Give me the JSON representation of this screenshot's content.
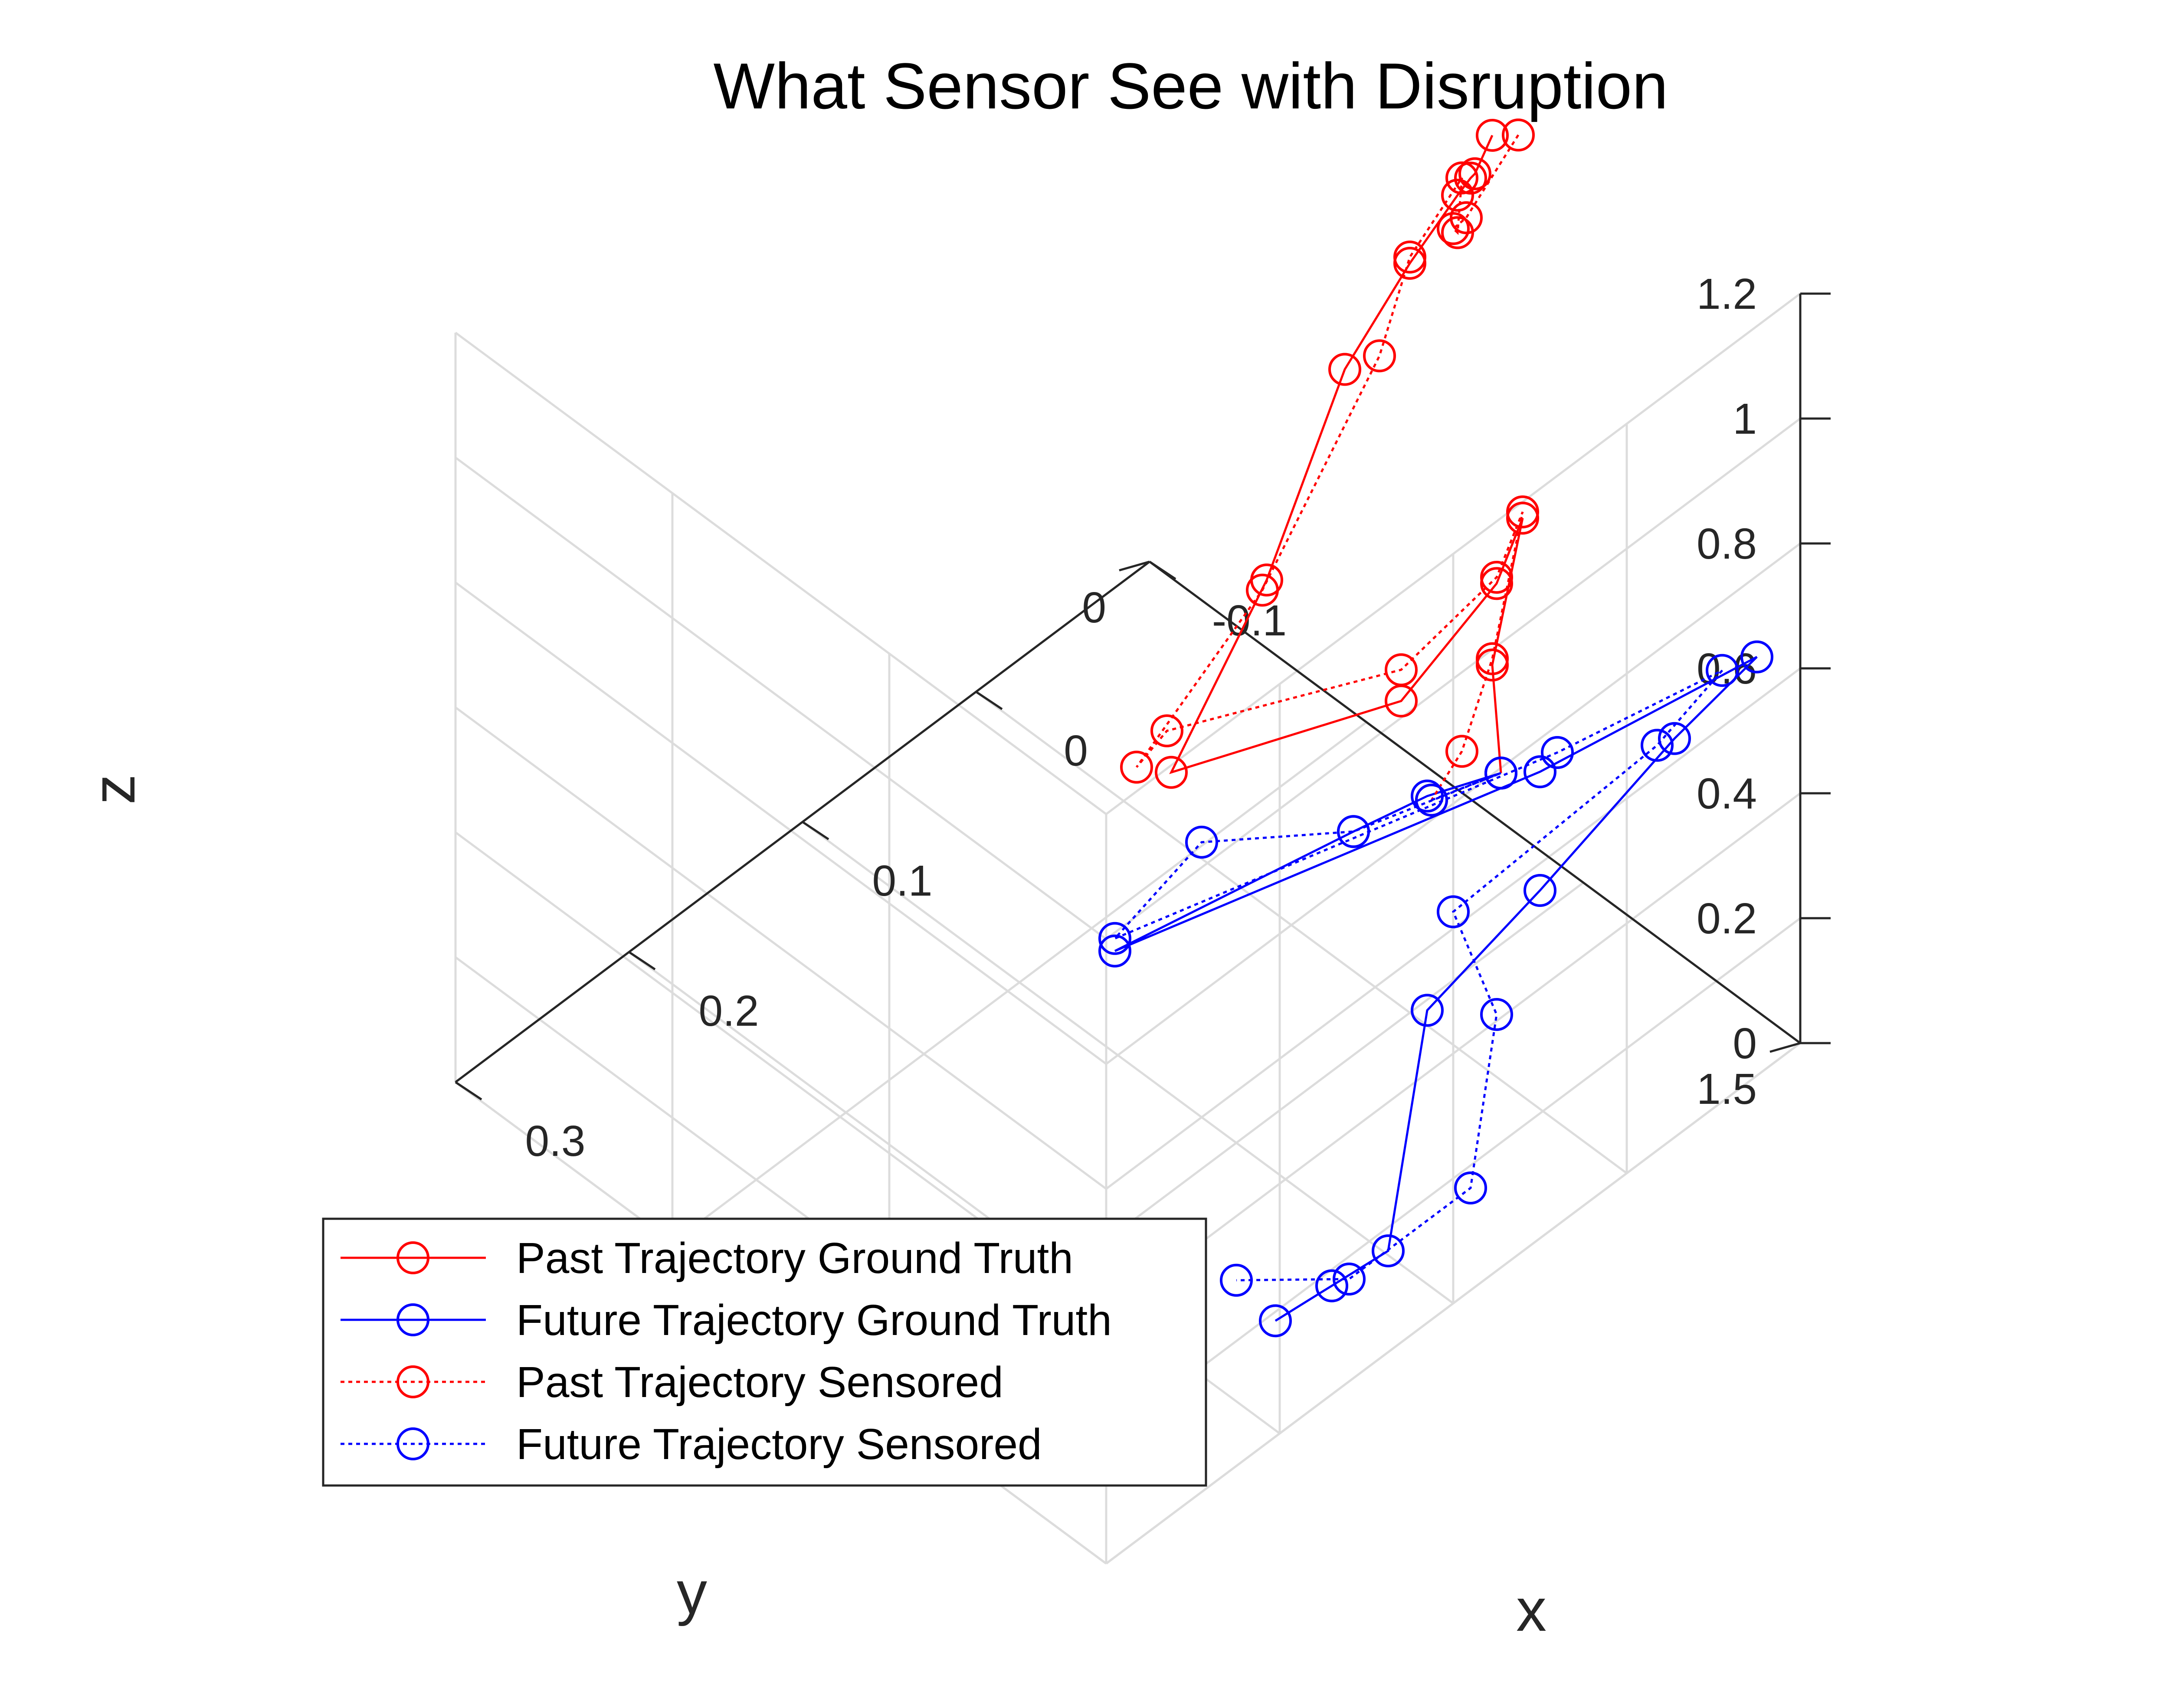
{
  "chart_data": {
    "type": "line",
    "projection": "3d",
    "title": "What Sensor See with Disruption",
    "xlabel": "x",
    "ylabel": "y",
    "zlabel": "z",
    "xticks": [
      "-0.1",
      "0",
      "0.1",
      "0.2",
      "0.3"
    ],
    "yticks": [
      "0",
      "1.5"
    ],
    "zticks": [
      "0",
      "0.2",
      "0.4",
      "0.6",
      "0.8",
      "1",
      "1.2"
    ],
    "grid": true,
    "legend_position": "bottom-left",
    "series": [
      {
        "name": "Past Trajectory Ground Truth",
        "color": "#ff0000",
        "line_style": "solid",
        "marker": "circle",
        "points": [
          [
            -0.09,
            0.83,
            1.13
          ],
          [
            -0.075,
            0.85,
            1.11
          ],
          [
            -0.06,
            0.9,
            1.16
          ],
          [
            -0.04,
            0.95,
            1.2
          ],
          [
            0.0,
            1.0,
            1.2
          ],
          [
            0.05,
            1.05,
            1.16
          ],
          [
            0.12,
            1.15,
            1.02
          ],
          [
            0.2,
            1.25,
            0.93
          ],
          [
            0.08,
            1.3,
            0.82
          ],
          [
            0.0,
            1.2,
            0.79
          ],
          [
            -0.04,
            1.1,
            0.76
          ],
          [
            0.04,
            1.35,
            0.82
          ],
          [
            0.06,
            1.45,
            0.74
          ]
        ]
      },
      {
        "name": "Future Trajectory Ground Truth",
        "color": "#0000ff",
        "line_style": "solid",
        "marker": "circle",
        "points": [
          [
            0.06,
            1.45,
            0.74
          ],
          [
            0.09,
            1.4,
            0.74
          ],
          [
            0.12,
            1.35,
            0.72
          ],
          [
            0.22,
            1.2,
            0.66
          ],
          [
            0.0,
            1.3,
            0.54
          ],
          [
            -0.15,
            1.2,
            0.36
          ],
          [
            -0.09,
            1.25,
            0.38
          ],
          [
            0.0,
            1.3,
            0.35
          ],
          [
            0.04,
            1.2,
            0.19
          ],
          [
            0.05,
            1.15,
            -0.2
          ],
          [
            0.07,
            1.1,
            -0.24
          ],
          [
            0.09,
            1.05,
            -0.28
          ]
        ]
      },
      {
        "name": "Past Trajectory Sensored",
        "color": "#ff0000",
        "line_style": "dotted",
        "marker": "circle",
        "points": [
          [
            -0.1,
            0.85,
            1.12
          ],
          [
            -0.07,
            0.85,
            1.05
          ],
          [
            -0.05,
            0.9,
            1.1
          ],
          [
            -0.04,
            0.95,
            1.14
          ],
          [
            -0.06,
            0.88,
            1.15
          ],
          [
            0.0,
            1.0,
            1.21
          ],
          [
            0.03,
            1.05,
            1.14
          ],
          [
            0.13,
            1.18,
            1.04
          ],
          [
            0.22,
            1.25,
            0.98
          ],
          [
            0.19,
            1.2,
            0.95
          ],
          [
            0.08,
            1.3,
            0.87
          ],
          [
            0.0,
            1.2,
            0.8
          ],
          [
            -0.04,
            1.1,
            0.77
          ],
          [
            0.04,
            1.35,
            0.83
          ],
          [
            0.07,
            1.4,
            0.77
          ],
          [
            0.1,
            1.45,
            0.78
          ]
        ]
      },
      {
        "name": "Future Trajectory Sensored",
        "color": "#0000ff",
        "line_style": "dotted",
        "marker": "circle",
        "points": [
          [
            0.1,
            1.45,
            0.78
          ],
          [
            0.06,
            1.45,
            0.74
          ],
          [
            0.12,
            1.35,
            0.72
          ],
          [
            0.17,
            1.2,
            0.73
          ],
          [
            0.22,
            1.2,
            0.68
          ],
          [
            -0.01,
            1.3,
            0.55
          ],
          [
            -0.13,
            1.2,
            0.38
          ],
          [
            -0.08,
            1.25,
            0.39
          ],
          [
            0.05,
            1.3,
            0.42
          ],
          [
            0.0,
            1.2,
            0.1
          ],
          [
            -0.01,
            1.1,
            -0.25
          ],
          [
            0.06,
            1.1,
            -0.25
          ],
          [
            0.1,
            1.0,
            -0.22
          ]
        ]
      }
    ]
  }
}
